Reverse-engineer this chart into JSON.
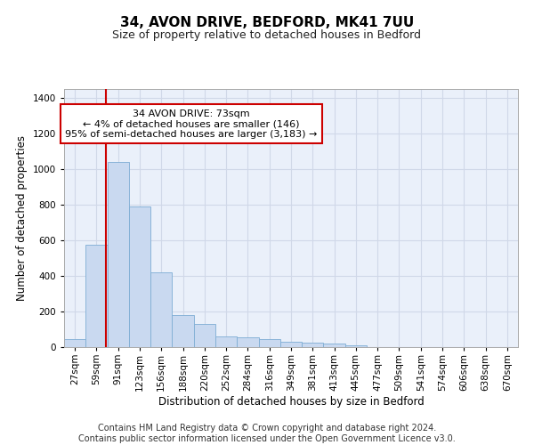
{
  "title": "34, AVON DRIVE, BEDFORD, MK41 7UU",
  "subtitle": "Size of property relative to detached houses in Bedford",
  "xlabel": "Distribution of detached houses by size in Bedford",
  "ylabel": "Number of detached properties",
  "bin_labels": [
    "27sqm",
    "59sqm",
    "91sqm",
    "123sqm",
    "156sqm",
    "188sqm",
    "220sqm",
    "252sqm",
    "284sqm",
    "316sqm",
    "349sqm",
    "381sqm",
    "413sqm",
    "445sqm",
    "477sqm",
    "509sqm",
    "541sqm",
    "574sqm",
    "606sqm",
    "638sqm",
    "670sqm"
  ],
  "bar_values": [
    47,
    575,
    1040,
    790,
    420,
    180,
    130,
    60,
    55,
    45,
    30,
    27,
    20,
    10,
    0,
    0,
    0,
    0,
    0,
    0,
    0
  ],
  "bar_color": "#c9d9f0",
  "bar_edgecolor": "#7eadd4",
  "bar_width": 1.0,
  "red_line_bin": 1.4375,
  "annotation_text": "34 AVON DRIVE: 73sqm\n← 4% of detached houses are smaller (146)\n95% of semi-detached houses are larger (3,183) →",
  "annotation_box_color": "#ffffff",
  "annotation_box_edgecolor": "#cc0000",
  "ylim": [
    0,
    1450
  ],
  "yticks": [
    0,
    200,
    400,
    600,
    800,
    1000,
    1200,
    1400
  ],
  "grid_color": "#d0d8e8",
  "bg_color": "#eaf0fa",
  "footer_line1": "Contains HM Land Registry data © Crown copyright and database right 2024.",
  "footer_line2": "Contains public sector information licensed under the Open Government Licence v3.0.",
  "title_fontsize": 11,
  "subtitle_fontsize": 9,
  "axis_label_fontsize": 8.5,
  "tick_fontsize": 7.5,
  "annotation_fontsize": 8,
  "footer_fontsize": 7
}
